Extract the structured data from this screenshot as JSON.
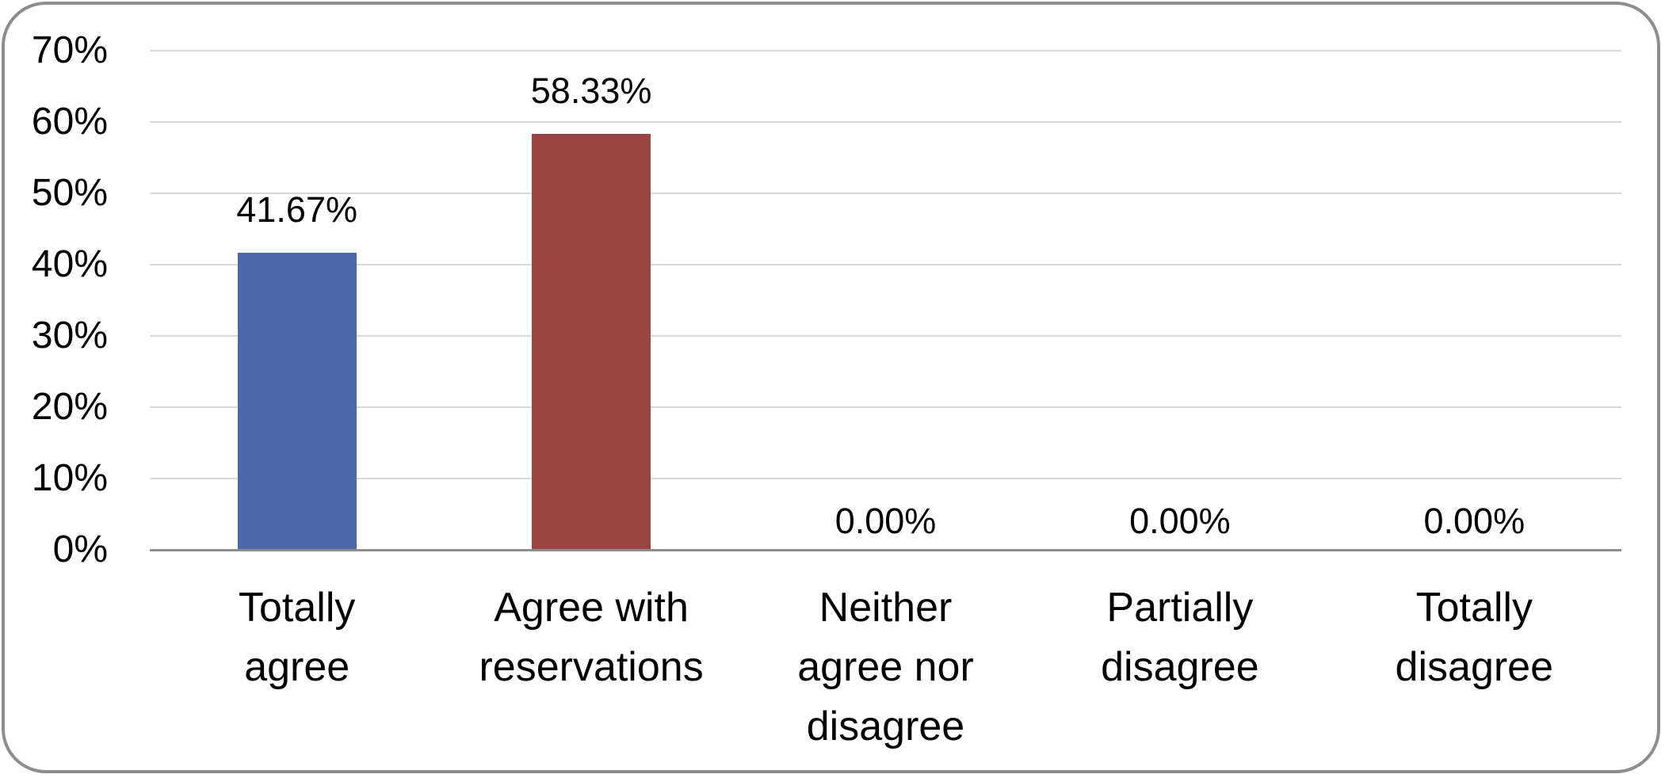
{
  "figure": {
    "background_color": "#FFFFFF",
    "border_color": "#8D8D8D"
  },
  "chart_data": {
    "type": "bar",
    "title": "",
    "xlabel": "",
    "ylabel": "",
    "categories": [
      "Totally agree",
      "Agree with reservations",
      "Neither agree nor disagree",
      "Partially disagree",
      "Totally disagree"
    ],
    "category_label_lines": [
      "Totally\nagree",
      "Agree with\nreservations",
      "Neither\nagree nor\ndisagree",
      "Partially\ndisagree",
      "Totally\ndisagree"
    ],
    "values": [
      41.67,
      58.33,
      0,
      0,
      0
    ],
    "data_labels": [
      "41.67%",
      "58.33%",
      "0.00%",
      "0.00%",
      "0.00%"
    ],
    "bar_colors": [
      "#4E67A8",
      "#9B4441",
      null,
      null,
      null
    ],
    "ylim": [
      0,
      70
    ],
    "y_tick_step": 10,
    "y_tick_labels": [
      "0%",
      "10%",
      "20%",
      "30%",
      "40%",
      "50%",
      "60%",
      "70%"
    ],
    "grid": true,
    "legend": false,
    "gridline_color": "#D9D9D9",
    "axis_line_color": "#8D8D8D",
    "text_color": "#000000"
  }
}
